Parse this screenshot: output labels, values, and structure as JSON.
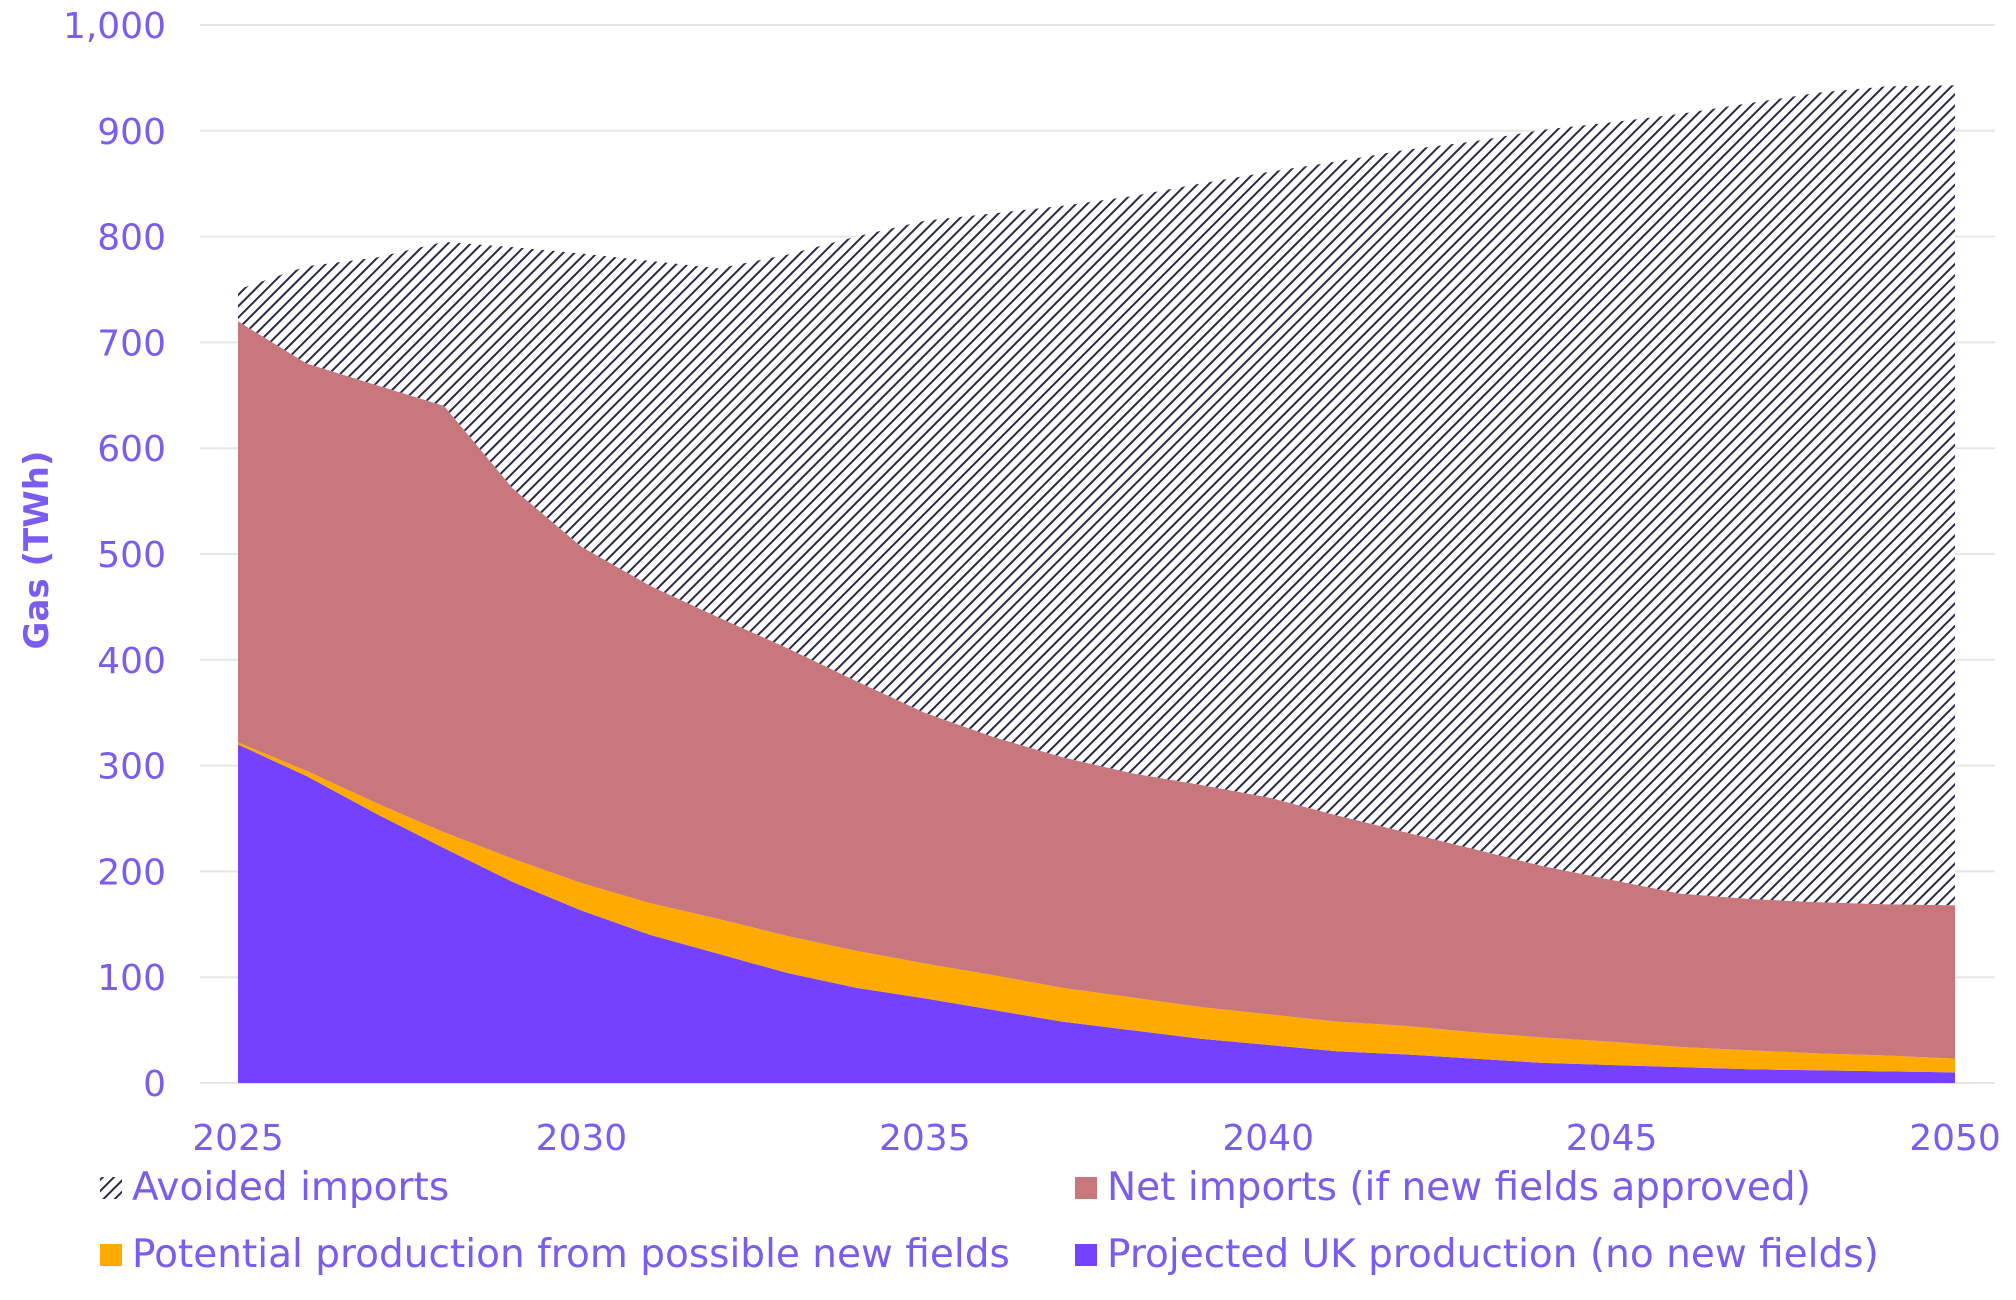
{
  "chart_data": {
    "type": "area",
    "stacked": true,
    "ylabel": "Gas (TWh)",
    "xlabel": "",
    "title": "",
    "ylim": [
      0,
      1000
    ],
    "xlim": [
      2025,
      2050
    ],
    "grid": true,
    "legend_position": "bottom",
    "x_ticks": [
      2025,
      2030,
      2035,
      2040,
      2045,
      2050
    ],
    "y_ticks": [
      0,
      100,
      200,
      300,
      400,
      500,
      600,
      700,
      800,
      900,
      1000
    ],
    "y_tick_labels": [
      "0",
      "100",
      "200",
      "300",
      "400",
      "500",
      "600",
      "700",
      "800",
      "900",
      "1,000"
    ],
    "x": [
      2025,
      2026,
      2027,
      2028,
      2029,
      2030,
      2031,
      2032,
      2033,
      2034,
      2035,
      2036,
      2037,
      2038,
      2039,
      2040,
      2041,
      2042,
      2043,
      2044,
      2045,
      2046,
      2047,
      2048,
      2049,
      2050
    ],
    "series": [
      {
        "name": "Projected UK production (no new fields)",
        "color": "#7442ff",
        "pattern": "solid",
        "values": [
          320,
          290,
          255,
          222,
          190,
          163,
          140,
          122,
          104,
          90,
          80,
          69,
          58,
          50,
          42,
          36,
          30,
          27,
          23,
          19,
          17,
          15,
          13,
          12,
          11,
          10
        ]
      },
      {
        "name": "Potential production from possible new fields",
        "color": "#ffaa00",
        "pattern": "solid",
        "values": [
          2,
          5,
          10,
          15,
          22,
          26,
          30,
          33,
          35,
          35,
          33,
          33,
          32,
          31,
          30,
          29,
          28,
          27,
          25,
          24,
          22,
          19,
          18,
          16,
          15,
          13
        ]
      },
      {
        "name": "Net imports (if new fields approved)",
        "color": "#c8777c",
        "pattern": "solid",
        "values": [
          398,
          385,
          395,
          403,
          350,
          318,
          300,
          285,
          272,
          255,
          237,
          225,
          218,
          212,
          210,
          205,
          195,
          183,
          173,
          162,
          153,
          145,
          143,
          143,
          143,
          145
        ]
      },
      {
        "name": "Avoided imports",
        "color": "#2a2a4a",
        "pattern": "hatched",
        "values": [
          30,
          92,
          120,
          155,
          228,
          277,
          307,
          330,
          372,
          420,
          465,
          495,
          521,
          545,
          568,
          591,
          618,
          645,
          669,
          696,
          716,
          737,
          752,
          765,
          773,
          775
        ]
      }
    ],
    "legend": [
      {
        "label": "Avoided imports",
        "marker": "hatched"
      },
      {
        "label": "Net imports (if new fields approved)",
        "marker": "#c8777c"
      },
      {
        "label": "Potential production from possible new fields",
        "marker": "#ffaa00"
      },
      {
        "label": "Projected UK production (no new fields)",
        "marker": "#7442ff"
      }
    ]
  }
}
